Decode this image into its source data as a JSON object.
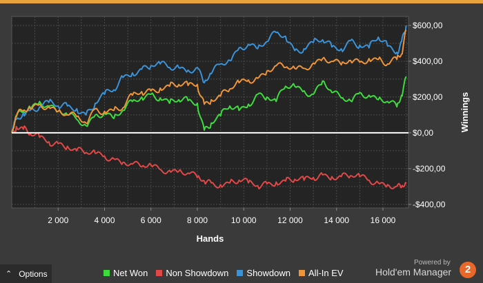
{
  "colors": {
    "net_won": "#3ddc3d",
    "non_showdown": "#e04848",
    "showdown": "#3a92d8",
    "all_in_ev": "#ef9437",
    "plot_bg": "#242424",
    "grid": "#4a4a4a",
    "zero_line": "#ffffff"
  },
  "chart_data": {
    "type": "line",
    "xlabel": "Hands",
    "ylabel": "Winnings",
    "xlim": [
      0,
      17100
    ],
    "ylim": [
      -420,
      650
    ],
    "x_ticks": [
      2000,
      4000,
      6000,
      8000,
      10000,
      12000,
      14000,
      16000
    ],
    "x_tick_labels": [
      "2 000",
      "4 000",
      "6 000",
      "8 000",
      "10 000",
      "12 000",
      "14 000",
      "16 000"
    ],
    "y_ticks": [
      600,
      400,
      200,
      0,
      -200,
      -400
    ],
    "y_tick_labels": [
      "$600,00",
      "$400,00",
      "$200,00",
      "$0,00",
      "-$200,00",
      "-$400,00"
    ],
    "grid": true,
    "legend_position": "bottom",
    "x": [
      0,
      200,
      500,
      800,
      1200,
      1600,
      2000,
      2400,
      2800,
      3200,
      3600,
      4000,
      4400,
      4800,
      5200,
      5600,
      6000,
      6400,
      6800,
      7200,
      7600,
      8000,
      8300,
      8600,
      9000,
      9400,
      9800,
      10200,
      10600,
      11000,
      11400,
      11800,
      12200,
      12600,
      13000,
      13400,
      13800,
      14200,
      14600,
      15000,
      15400,
      15800,
      16200,
      16600,
      16800,
      17000
    ],
    "series": [
      {
        "name": "Net Won",
        "color_key": "net_won",
        "values": [
          0,
          90,
          120,
          140,
          175,
          150,
          120,
          100,
          75,
          40,
          100,
          110,
          80,
          125,
          175,
          200,
          215,
          195,
          165,
          185,
          180,
          165,
          15,
          55,
          95,
          150,
          125,
          160,
          215,
          200,
          175,
          260,
          260,
          235,
          215,
          290,
          225,
          195,
          180,
          225,
          210,
          185,
          175,
          145,
          210,
          315
        ]
      },
      {
        "name": "Non Showdown",
        "color_key": "non_showdown",
        "values": [
          0,
          35,
          20,
          -5,
          -25,
          -50,
          -60,
          -75,
          -100,
          -110,
          -115,
          -130,
          -145,
          -165,
          -175,
          -190,
          -180,
          -205,
          -210,
          -215,
          -225,
          -250,
          -270,
          -280,
          -290,
          -280,
          -265,
          -280,
          -295,
          -285,
          -275,
          -270,
          -260,
          -265,
          -250,
          -235,
          -245,
          -245,
          -240,
          -245,
          -265,
          -280,
          -290,
          -300,
          -305,
          -285
        ]
      },
      {
        "name": "Showdown",
        "color_key": "showdown",
        "values": [
          0,
          75,
          110,
          125,
          145,
          170,
          150,
          150,
          135,
          100,
          165,
          215,
          240,
          310,
          335,
          355,
          375,
          385,
          365,
          365,
          350,
          365,
          280,
          330,
          385,
          405,
          475,
          495,
          470,
          510,
          560,
          540,
          460,
          470,
          505,
          520,
          480,
          470,
          515,
          490,
          475,
          535,
          485,
          450,
          510,
          600
        ]
      },
      {
        "name": "All-In EV",
        "color_key": "all_in_ev",
        "values": [
          0,
          95,
          125,
          135,
          160,
          145,
          120,
          100,
          90,
          55,
          135,
          120,
          125,
          140,
          210,
          230,
          235,
          250,
          260,
          270,
          265,
          270,
          160,
          185,
          205,
          245,
          280,
          295,
          305,
          345,
          375,
          365,
          360,
          360,
          390,
          415,
          400,
          380,
          405,
          395,
          415,
          410,
          385,
          410,
          440,
          575
        ]
      }
    ]
  },
  "legend": [
    {
      "label": "Net Won",
      "color_key": "net_won"
    },
    {
      "label": "Non Showdown",
      "color_key": "non_showdown"
    },
    {
      "label": "Showdown",
      "color_key": "showdown"
    },
    {
      "label": "All-In EV",
      "color_key": "all_in_ev"
    }
  ],
  "options": {
    "label": "Options",
    "icon": "chevron-up-icon"
  },
  "brand": {
    "powered": "Powered by",
    "name": "Hold'em Manager",
    "logo": "2"
  }
}
